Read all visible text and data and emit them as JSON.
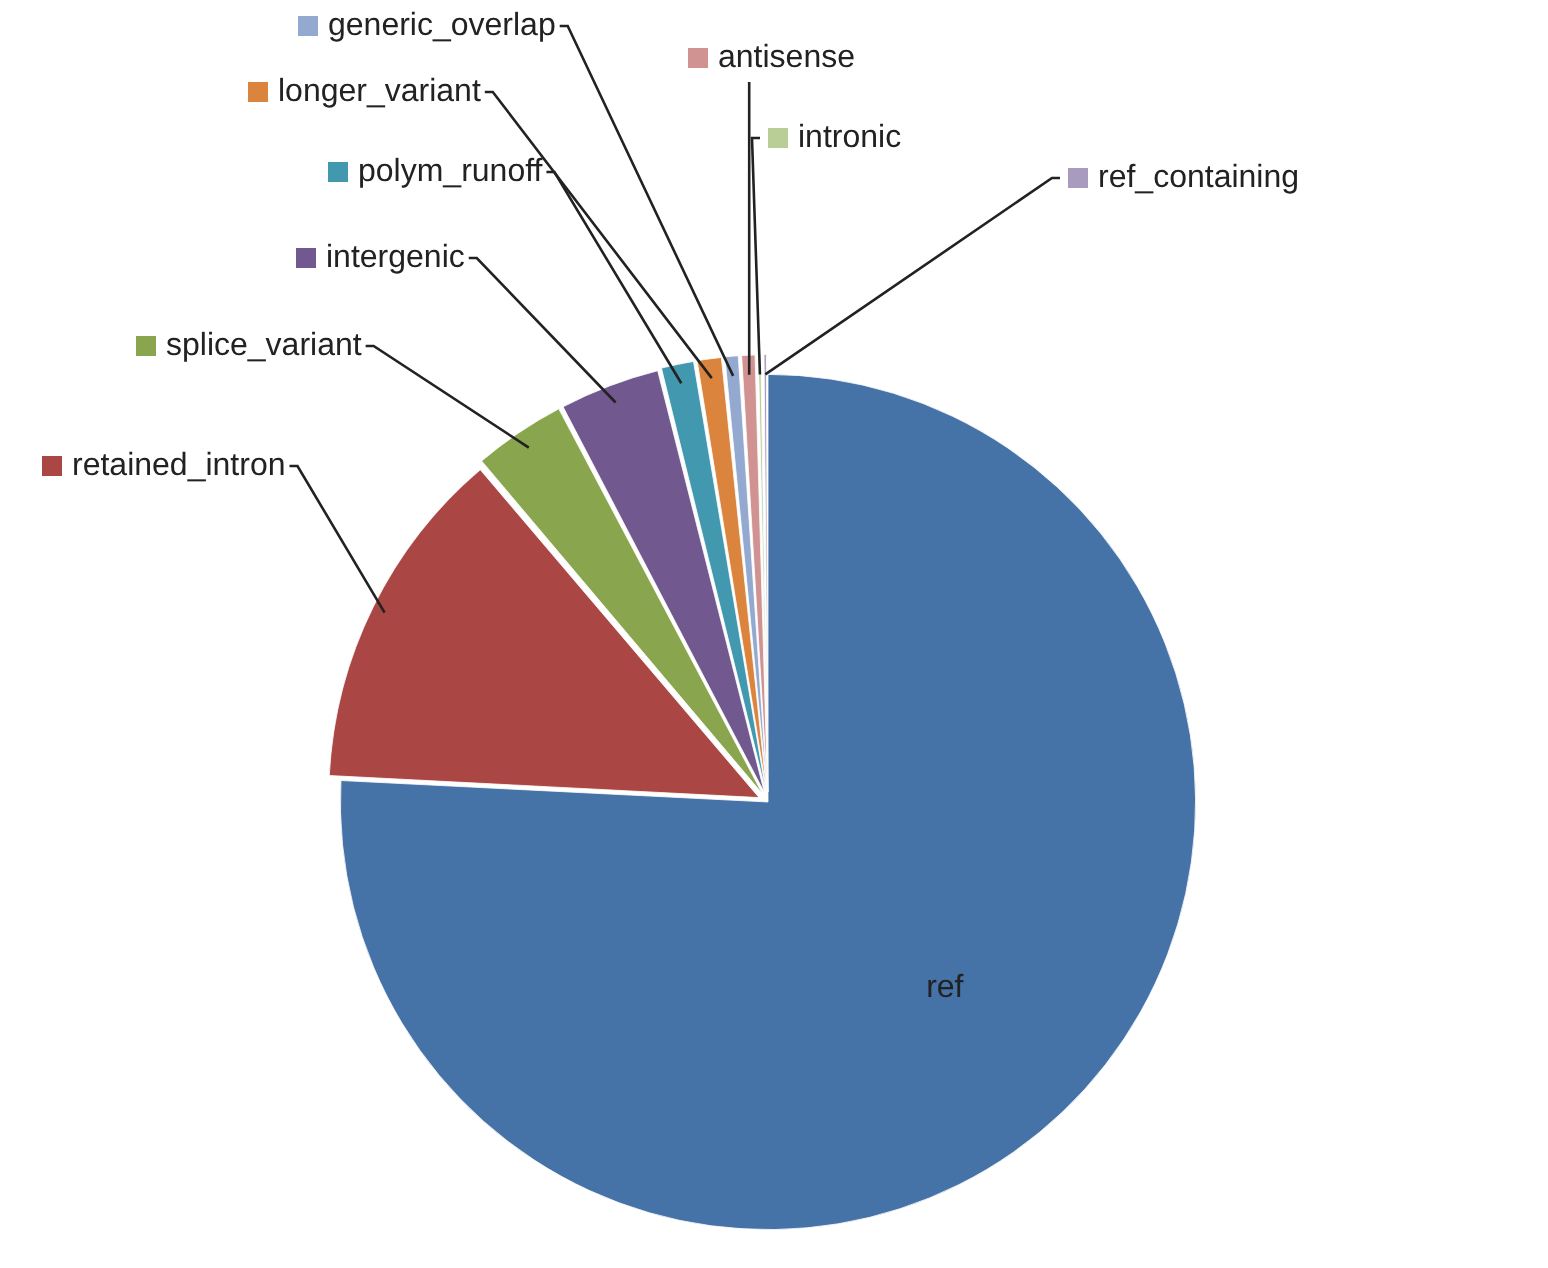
{
  "chart_data": {
    "type": "pie",
    "categories": [
      "ref",
      "retained_intron",
      "splice_variant",
      "intergenic",
      "polym_runoff",
      "longer_variant",
      "generic_overlap",
      "antisense",
      "intronic",
      "ref_containing"
    ],
    "values": [
      75.8,
      13,
      3.5,
      3.8,
      1.3,
      1,
      0.6,
      0.6,
      0.2,
      0.2
    ],
    "colors": [
      "#4572a7",
      "#aa4643",
      "#89a54e",
      "#71588f",
      "#4198af",
      "#db843d",
      "#93a9cf",
      "#d19392",
      "#b9cd96",
      "#a99bbd"
    ],
    "legend": "top"
  }
}
